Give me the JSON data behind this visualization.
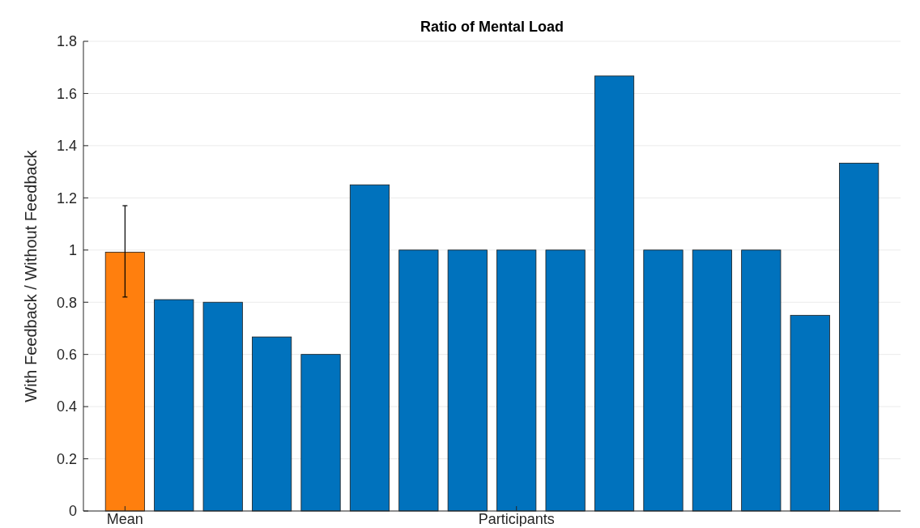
{
  "chart_data": {
    "type": "bar",
    "title": "Ratio of Mental Load",
    "ylabel": "With Feedback / Without Feedback",
    "categories": [
      "Mean",
      null,
      null,
      null,
      null,
      null,
      null,
      null,
      "Participants",
      null,
      null,
      null,
      null,
      null,
      null,
      null
    ],
    "values": [
      0.992,
      0.81,
      0.8,
      0.667,
      0.6,
      1.25,
      1,
      1,
      1,
      1,
      1.667,
      1,
      1,
      1,
      0.75,
      1.333
    ],
    "colors": [
      "#ff7f0e",
      "#0072bd",
      "#0072bd",
      "#0072bd",
      "#0072bd",
      "#0072bd",
      "#0072bd",
      "#0072bd",
      "#0072bd",
      "#0072bd",
      "#0072bd",
      "#0072bd",
      "#0072bd",
      "#0072bd",
      "#0072bd",
      "#0072bd"
    ],
    "errors": [
      [
        0.82,
        1.17
      ],
      null,
      null,
      null,
      null,
      null,
      null,
      null,
      null,
      null,
      null,
      null,
      null,
      null,
      null,
      null
    ],
    "ylim": [
      0,
      1.8
    ],
    "yticks": [
      0,
      0.2,
      0.4,
      0.6,
      0.8,
      1,
      1.2,
      1.4,
      1.6,
      1.8
    ],
    "grid": "y"
  }
}
